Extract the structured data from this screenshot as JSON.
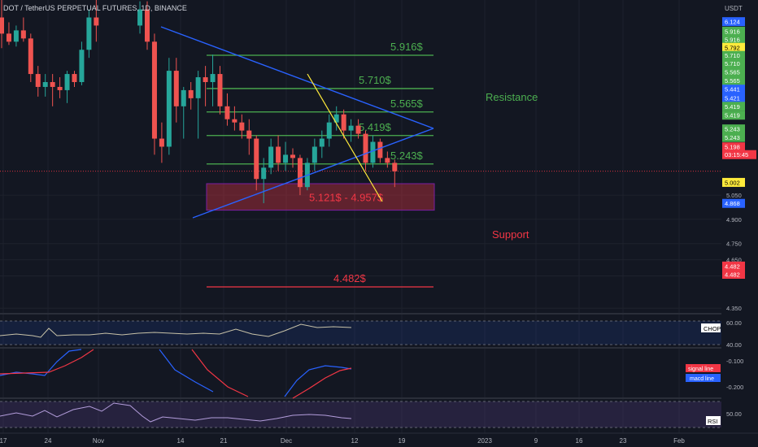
{
  "header": {
    "symbol_title": "DOT / TetherUS PERPETUAL FUTURES, 1D, BINANCE",
    "currency": "USDT"
  },
  "annotations": {
    "resistance_label": "Resistance",
    "support_label": "Support",
    "range_label": "5.121$ - 4.957$"
  },
  "chart_data": {
    "type": "candlestick",
    "title": "DOT / TetherUS PERPETUAL FUTURES, 1D, BINANCE",
    "y_unit": "USDT",
    "ylim": [
      4.3,
      6.18
    ],
    "y_ticks": [
      "4.350",
      "4.550",
      "4.650",
      "4.750",
      "4.900",
      "5.050"
    ],
    "x_ticks": [
      "17",
      "24",
      "Nov",
      "14",
      "21",
      "Dec",
      "12",
      "19",
      "2023",
      "9",
      "16",
      "23",
      "Feb"
    ],
    "candles": [
      {
        "d": "Oct 14",
        "o": 6.15,
        "h": 6.3,
        "l": 5.96,
        "c": 6.05
      },
      {
        "d": "Oct 15",
        "o": 6.05,
        "h": 6.12,
        "l": 5.98,
        "c": 6.0
      },
      {
        "d": "Oct 16",
        "o": 6.0,
        "h": 6.1,
        "l": 5.97,
        "c": 6.07
      },
      {
        "d": "Oct 17",
        "o": 6.07,
        "h": 6.15,
        "l": 6.0,
        "c": 6.02
      },
      {
        "d": "Oct 18",
        "o": 6.02,
        "h": 6.05,
        "l": 5.75,
        "c": 5.8
      },
      {
        "d": "Oct 19",
        "o": 5.8,
        "h": 5.85,
        "l": 5.66,
        "c": 5.72
      },
      {
        "d": "Oct 20",
        "o": 5.72,
        "h": 5.8,
        "l": 5.66,
        "c": 5.75
      },
      {
        "d": "Oct 21",
        "o": 5.75,
        "h": 5.8,
        "l": 5.6,
        "c": 5.72
      },
      {
        "d": "Oct 22",
        "o": 5.72,
        "h": 5.78,
        "l": 5.65,
        "c": 5.7
      },
      {
        "d": "Oct 23",
        "o": 5.7,
        "h": 5.82,
        "l": 5.62,
        "c": 5.8
      },
      {
        "d": "Oct 24",
        "o": 5.8,
        "h": 5.82,
        "l": 5.72,
        "c": 5.75
      },
      {
        "d": "Oct 25",
        "o": 5.75,
        "h": 6.0,
        "l": 5.73,
        "c": 5.95
      },
      {
        "d": "Oct 26",
        "o": 5.95,
        "h": 6.2,
        "l": 5.9,
        "c": 6.15
      },
      {
        "d": "Oct 27",
        "o": 6.15,
        "h": 6.3,
        "l": 6.0,
        "c": 6.1
      },
      {
        "d": "Nov 6",
        "o": 6.1,
        "h": 6.25,
        "l": 6.05,
        "c": 6.2
      },
      {
        "d": "Nov 7",
        "o": 6.2,
        "h": 6.25,
        "l": 5.95,
        "c": 6.0
      },
      {
        "d": "Nov 8",
        "o": 6.0,
        "h": 6.05,
        "l": 5.3,
        "c": 5.4
      },
      {
        "d": "Nov 9",
        "o": 5.4,
        "h": 5.5,
        "l": 5.25,
        "c": 5.35
      },
      {
        "d": "Nov 10",
        "o": 5.35,
        "h": 5.9,
        "l": 5.3,
        "c": 5.82
      },
      {
        "d": "Nov 11",
        "o": 5.82,
        "h": 5.9,
        "l": 5.5,
        "c": 5.6
      },
      {
        "d": "Nov 12",
        "o": 5.6,
        "h": 5.72,
        "l": 5.4,
        "c": 5.7
      },
      {
        "d": "Nov 13",
        "o": 5.7,
        "h": 5.75,
        "l": 5.58,
        "c": 5.65
      },
      {
        "d": "Nov 14",
        "o": 5.65,
        "h": 5.82,
        "l": 5.4,
        "c": 5.78
      },
      {
        "d": "Nov 15",
        "o": 5.78,
        "h": 5.85,
        "l": 5.6,
        "c": 5.75
      },
      {
        "d": "Nov 16",
        "o": 5.75,
        "h": 5.92,
        "l": 5.6,
        "c": 5.8
      },
      {
        "d": "Nov 17",
        "o": 5.8,
        "h": 5.85,
        "l": 5.55,
        "c": 5.6
      },
      {
        "d": "Nov 18",
        "o": 5.6,
        "h": 5.68,
        "l": 5.48,
        "c": 5.52
      },
      {
        "d": "Nov 19",
        "o": 5.52,
        "h": 5.6,
        "l": 5.45,
        "c": 5.5
      },
      {
        "d": "Nov 20",
        "o": 5.5,
        "h": 5.55,
        "l": 5.4,
        "c": 5.45
      },
      {
        "d": "Nov 21",
        "o": 5.45,
        "h": 5.52,
        "l": 5.3,
        "c": 5.4
      },
      {
        "d": "Nov 22",
        "o": 5.4,
        "h": 5.42,
        "l": 5.08,
        "c": 5.15
      },
      {
        "d": "Nov 23",
        "o": 5.15,
        "h": 5.28,
        "l": 5.0,
        "c": 5.22
      },
      {
        "d": "Nov 24",
        "o": 5.22,
        "h": 5.4,
        "l": 5.18,
        "c": 5.35
      },
      {
        "d": "Nov 25",
        "o": 5.35,
        "h": 5.42,
        "l": 5.2,
        "c": 5.25
      },
      {
        "d": "Nov 26",
        "o": 5.25,
        "h": 5.38,
        "l": 5.2,
        "c": 5.3
      },
      {
        "d": "Nov 27",
        "o": 5.3,
        "h": 5.34,
        "l": 5.22,
        "c": 5.28
      },
      {
        "d": "Nov 28",
        "o": 5.28,
        "h": 5.3,
        "l": 5.05,
        "c": 5.1
      },
      {
        "d": "Nov 29",
        "o": 5.1,
        "h": 5.28,
        "l": 5.08,
        "c": 5.25
      },
      {
        "d": "Nov 30",
        "o": 5.25,
        "h": 5.4,
        "l": 5.2,
        "c": 5.35
      },
      {
        "d": "Dec 1",
        "o": 5.35,
        "h": 5.45,
        "l": 5.28,
        "c": 5.4
      },
      {
        "d": "Dec 2",
        "o": 5.4,
        "h": 5.55,
        "l": 5.35,
        "c": 5.5
      },
      {
        "d": "Dec 3",
        "o": 5.5,
        "h": 5.6,
        "l": 5.45,
        "c": 5.55
      },
      {
        "d": "Dec 4",
        "o": 5.55,
        "h": 5.58,
        "l": 5.4,
        "c": 5.45
      },
      {
        "d": "Dec 5",
        "o": 5.45,
        "h": 5.52,
        "l": 5.38,
        "c": 5.48
      },
      {
        "d": "Dec 6",
        "o": 5.48,
        "h": 5.52,
        "l": 5.4,
        "c": 5.43
      },
      {
        "d": "Dec 7",
        "o": 5.43,
        "h": 5.45,
        "l": 5.2,
        "c": 5.25
      },
      {
        "d": "Dec 8",
        "o": 5.25,
        "h": 5.42,
        "l": 5.22,
        "c": 5.38
      },
      {
        "d": "Dec 9",
        "o": 5.38,
        "h": 5.4,
        "l": 5.25,
        "c": 5.28
      },
      {
        "d": "Dec 10",
        "o": 5.28,
        "h": 5.32,
        "l": 5.22,
        "c": 5.25
      },
      {
        "d": "Dec 11",
        "o": 5.25,
        "h": 5.27,
        "l": 5.1,
        "c": 5.198
      }
    ],
    "horizontal_levels": [
      {
        "label": "5.916$",
        "value": 5.916,
        "color": "#4caf50"
      },
      {
        "label": "5.710$",
        "value": 5.71,
        "color": "#4caf50"
      },
      {
        "label": "5.565$",
        "value": 5.565,
        "color": "#4caf50"
      },
      {
        "label": "5.419$",
        "value": 5.419,
        "color": "#4caf50"
      },
      {
        "label": "5.243$",
        "value": 5.243,
        "color": "#4caf50"
      },
      {
        "label": "4.482$",
        "value": 4.482,
        "color": "#f23645"
      }
    ],
    "support_zone": {
      "label": "5.121$ - 4.957$",
      "high": 5.121,
      "low": 4.957
    },
    "price_axis_badges": [
      {
        "text": "6.124",
        "color": "#2962ff",
        "tc": "#ffffff",
        "v": 6.124
      },
      {
        "text": "5.916",
        "color": "#4caf50",
        "tc": "#ffffff",
        "v": 6.065
      },
      {
        "text": "5.916",
        "color": "#4caf50",
        "tc": "#ffffff",
        "v": 6.015
      },
      {
        "text": "5.792",
        "color": "#ffeb3b",
        "tc": "#000000",
        "v": 5.965
      },
      {
        "text": "5.710",
        "color": "#4caf50",
        "tc": "#ffffff",
        "v": 5.915
      },
      {
        "text": "5.710",
        "color": "#4caf50",
        "tc": "#ffffff",
        "v": 5.865
      },
      {
        "text": "5.565",
        "color": "#4caf50",
        "tc": "#ffffff",
        "v": 5.812
      },
      {
        "text": "5.565",
        "color": "#4caf50",
        "tc": "#ffffff",
        "v": 5.76
      },
      {
        "text": "5.441",
        "color": "#2962ff",
        "tc": "#ffffff",
        "v": 5.706
      },
      {
        "text": "5.421",
        "color": "#2962ff",
        "tc": "#ffffff",
        "v": 5.652
      },
      {
        "text": "5.419",
        "color": "#4caf50",
        "tc": "#ffffff",
        "v": 5.6
      },
      {
        "text": "5.419",
        "color": "#4caf50",
        "tc": "#ffffff",
        "v": 5.545
      },
      {
        "text": "5.243",
        "color": "#4caf50",
        "tc": "#ffffff",
        "v": 5.46
      },
      {
        "text": "5.243",
        "color": "#4caf50",
        "tc": "#ffffff",
        "v": 5.407
      },
      {
        "text": "5.198",
        "color": "#f23645",
        "tc": "#ffffff",
        "v": 5.349
      },
      {
        "text": "03:15:45",
        "color": "#f23645",
        "tc": "#ffffff",
        "v": 5.301
      },
      {
        "text": "5.002",
        "color": "#ffeb3b",
        "tc": "#000000",
        "v": 5.129
      },
      {
        "text": "4.868",
        "color": "#2962ff",
        "tc": "#ffffff",
        "v": 4.999
      },
      {
        "text": "4.482",
        "color": "#f23645",
        "tc": "#ffffff",
        "v": 4.611
      },
      {
        "text": "4.482",
        "color": "#f23645",
        "tc": "#ffffff",
        "v": 4.56
      }
    ],
    "indicators": {
      "chop": {
        "label": "CHOP",
        "ticks": [
          "60.00",
          "40.00"
        ]
      },
      "macd": {
        "signal_label": "signal line",
        "macd_label": "macd line",
        "ticks": [
          "-0.100",
          "-0.200"
        ]
      },
      "rsi": {
        "label": "RSI",
        "ticks": [
          "50.00"
        ]
      }
    },
    "colors": {
      "up": "#26a69a",
      "down": "#ef5350",
      "trendline": "#2962ff",
      "yellow_line": "#ffeb3b",
      "zone_border": "#7b1fa2"
    }
  }
}
